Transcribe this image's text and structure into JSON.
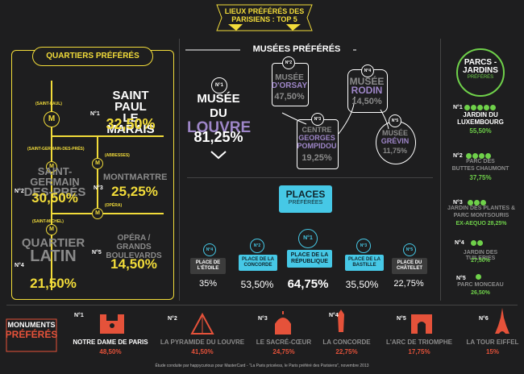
{
  "header": {
    "title1": "LIEUX PRÉFÉRÉS DES",
    "title2": "PARISIENS : TOP 5"
  },
  "quartiers": {
    "title": "QUARTIERS PRÉFÉRÉS",
    "items": [
      {
        "rank": "N°1",
        "station": "(SAINT-PAUL)",
        "name1": "SAINT PAUL",
        "name2": "LE MARAIS",
        "pct": "32,50%"
      },
      {
        "rank": "N°2",
        "station": "(SAINT-GERMAIN-DES-PRÉS)",
        "name1": "SAINT-GERMAIN",
        "name2": "DES-PRÉS",
        "pct": "30,50%"
      },
      {
        "rank": "N°3",
        "station": "(ABBESSES)",
        "name1": "MONTMARTRE",
        "name2": "",
        "pct": "25,25%"
      },
      {
        "rank": "N°4",
        "station": "(SAINT-MICHEL)",
        "name1": "QUARTIER",
        "name2": "LATIN",
        "pct": "21,50%"
      },
      {
        "rank": "N°5",
        "station": "(OPÉRA)",
        "name1": "OPÉRA / GRANDS",
        "name2": "BOULEVARDS",
        "pct": "14,50%"
      }
    ],
    "metro_letter": "M"
  },
  "musees": {
    "title": "MUSÉES PRÉFÉRÉS",
    "items": [
      {
        "rank": "N°1",
        "name1": "MUSÉE DU",
        "name2": "LOUVRE",
        "pct": "81,25%"
      },
      {
        "rank": "N°2",
        "name1": "MUSÉE",
        "name2": "D'ORSAY",
        "pct": "47,50%"
      },
      {
        "rank": "N°3",
        "name1": "CENTRE",
        "name2": "GEORGES",
        "name3": "POMPIDOU",
        "pct": "19,25%"
      },
      {
        "rank": "N°4",
        "name1": "MUSÉE",
        "name2": "RODIN",
        "pct": "14,50%"
      },
      {
        "rank": "N°5",
        "name1": "MUSÉE",
        "name2": "GRÉVIN",
        "pct": "11,75%"
      }
    ]
  },
  "parcs": {
    "title1": "PARCS -",
    "title2": "JARDINS",
    "title3": "PRÉFÉRÉS",
    "items": [
      {
        "rank": "N°1",
        "name1": "JARDIN DU",
        "name2": "LUXEMBOURG",
        "pct": "55,50%"
      },
      {
        "rank": "N°2",
        "name1": "PARC DES",
        "name2": "BUTTES CHAUMONT",
        "pct": "37,75%"
      },
      {
        "rank": "N°3",
        "name1": "JARDIN DES PLANTES &",
        "name2": "PARC MONTSOURIS",
        "pct": "EX-AEQUO 28,25%"
      },
      {
        "rank": "N°4",
        "name1": "JARDIN DES TUILERIES",
        "name2": "",
        "pct": "27,50%"
      },
      {
        "rank": "N°5",
        "name1": "PARC MONCEAU",
        "name2": "",
        "pct": "26,50%"
      }
    ]
  },
  "places": {
    "title": "PLACES",
    "subtitle": "PRÉFÉRÉES",
    "items": [
      {
        "rank": "N°4",
        "name": "PLACE DE L'ÉTOILE",
        "pct": "35%"
      },
      {
        "rank": "N°2",
        "name": "PLACE DE LA CONCORDE",
        "pct": "53,50%"
      },
      {
        "rank": "N°1",
        "name": "PLACE DE LA RÉPUBLIQUE",
        "pct": "64,75%"
      },
      {
        "rank": "N°3",
        "name": "PLACE DE LA BASTILLE",
        "pct": "35,50%"
      },
      {
        "rank": "N°5",
        "name": "PLACE DU CHÂTELET",
        "pct": "22,75%"
      }
    ]
  },
  "monuments": {
    "title1": "MONUMENTS",
    "title2": "PRÉFÉRÉS",
    "items": [
      {
        "rank": "N°1",
        "name": "NOTRE DAME DE PARIS",
        "pct": "48,50%"
      },
      {
        "rank": "N°2",
        "name": "LA PYRAMIDE DU LOUVRE",
        "pct": "41,50%"
      },
      {
        "rank": "N°3",
        "name": "LE SACRÉ-CŒUR",
        "pct": "24,75%"
      },
      {
        "rank": "N°4",
        "name": "LA CONCORDE",
        "pct": "22,75%"
      },
      {
        "rank": "N°5",
        "name": "L'ARC DE TRIOMPHE",
        "pct": "17,75%"
      },
      {
        "rank": "N°6",
        "name": "LA TOUR EIFFEL",
        "pct": "15%"
      }
    ]
  },
  "footer": {
    "credit": "Étude conduite par happycurious pour MasterCard - \"La Paris priceless, le Paris préféré des Parisiens\", novembre 2013"
  },
  "colors": {
    "bg": "#1e1e1f",
    "yellow": "#f2dc3a",
    "purple": "#9e86c8",
    "green": "#6fd14a",
    "blue": "#46c8e6",
    "red": "#e5523a"
  }
}
